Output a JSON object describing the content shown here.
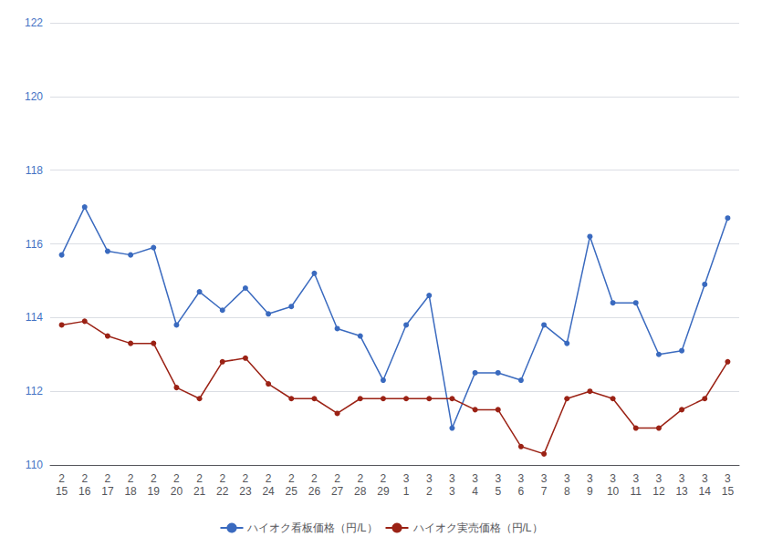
{
  "chart_data": {
    "type": "line",
    "categories": [
      "2\n15",
      "2\n16",
      "2\n17",
      "2\n18",
      "2\n19",
      "2\n20",
      "2\n21",
      "2\n22",
      "2\n23",
      "2\n24",
      "2\n25",
      "2\n26",
      "2\n27",
      "2\n28",
      "2\n29",
      "3\n1",
      "3\n2",
      "3\n3",
      "3\n4",
      "3\n5",
      "3\n6",
      "3\n7",
      "3\n8",
      "3\n9",
      "3\n10",
      "3\n11",
      "3\n12",
      "3\n13",
      "3\n14",
      "3\n15"
    ],
    "series": [
      {
        "name": "ハイオク看板価格（円/L）",
        "color": "#3a6abf",
        "marker": "circle",
        "values": [
          115.7,
          117.0,
          115.8,
          115.7,
          115.9,
          113.8,
          114.7,
          114.2,
          114.8,
          114.1,
          114.3,
          115.2,
          113.7,
          113.5,
          112.3,
          113.8,
          114.6,
          111.0,
          112.5,
          112.5,
          112.3,
          113.8,
          113.3,
          116.2,
          114.4,
          114.4,
          113.0,
          113.1,
          114.9,
          116.7
        ]
      },
      {
        "name": "ハイオク実売価格（円/L）",
        "color": "#9b2215",
        "marker": "circle",
        "values": [
          113.8,
          113.9,
          113.5,
          113.3,
          113.3,
          112.1,
          111.8,
          112.8,
          112.9,
          112.2,
          111.8,
          111.8,
          111.4,
          111.8,
          111.8,
          111.8,
          111.8,
          111.8,
          111.5,
          111.5,
          110.5,
          110.3,
          111.8,
          112.0,
          111.8,
          111.0,
          111.0,
          111.5,
          111.8,
          112.8
        ]
      }
    ],
    "ylim": [
      110,
      122
    ],
    "yticks": [
      110,
      112,
      114,
      116,
      118,
      120,
      122
    ],
    "grid": true,
    "legend": "bottom"
  }
}
